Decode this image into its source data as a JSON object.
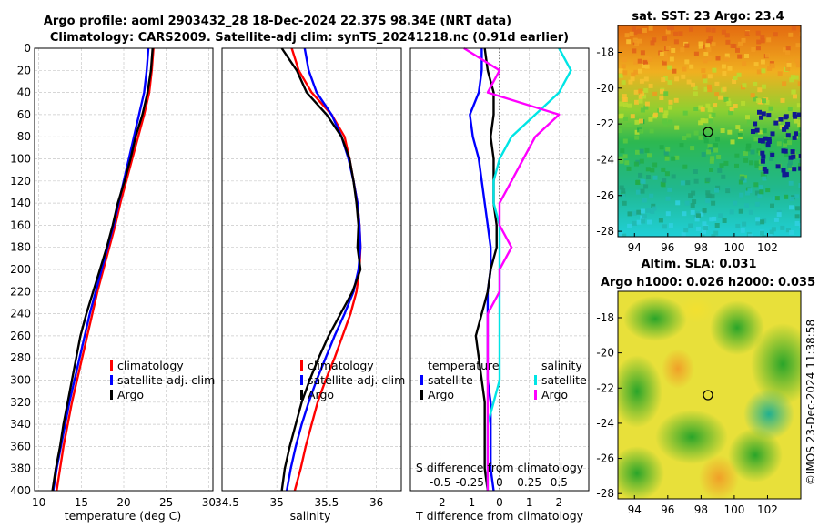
{
  "titles": {
    "main_line1": "Argo profile: aoml 2903432_28 18-Dec-2024 22.37S 98.34E (NRT data)",
    "main_line2": "Climatology: CARS2009. Satellite-adj clim: synTS_20241218.nc (0.91d earlier)",
    "sst_map": "sat. SST: 23 Argo: 23.4",
    "sla_line1": "Altim. SLA: 0.031",
    "sla_line2": "Argo h1000: 0.026 h2000: 0.035",
    "stamp": "©IMOS 23-Dec-2024 11:38:58"
  },
  "colors": {
    "climatology": "#ff0000",
    "satellite": "#0000ff",
    "argo": "#000000",
    "s_sat": "#00e5e5",
    "s_argo": "#ff00ff",
    "map_border": "#000000"
  },
  "icons": {
    "float_marker": "circle-icon"
  },
  "chart_data": [
    {
      "type": "line",
      "name": "temperature-profile",
      "xlabel": "temperature (deg C)",
      "ylabel": "depth",
      "xlim": [
        9.5,
        30.5
      ],
      "ylim": [
        0,
        400
      ],
      "y_inverted": true,
      "xticks": [
        10,
        15,
        20,
        25,
        30
      ],
      "yticks": [
        0,
        20,
        40,
        60,
        80,
        100,
        120,
        140,
        160,
        180,
        200,
        220,
        240,
        260,
        280,
        300,
        320,
        340,
        360,
        380,
        400
      ],
      "legend": [
        "climatology",
        "satellite-adj. clim",
        "Argo"
      ],
      "depth": [
        0,
        20,
        40,
        60,
        80,
        100,
        120,
        140,
        160,
        180,
        200,
        220,
        240,
        260,
        280,
        300,
        320,
        340,
        360,
        380,
        400
      ],
      "series": [
        {
          "name": "climatology",
          "values": [
            23.5,
            23.3,
            23.0,
            22.4,
            21.7,
            21.0,
            20.3,
            19.6,
            19.0,
            18.3,
            17.6,
            16.9,
            16.3,
            15.7,
            15.1,
            14.5,
            13.9,
            13.4,
            12.9,
            12.5,
            12.1
          ]
        },
        {
          "name": "satellite-adj. clim",
          "values": [
            22.9,
            22.7,
            22.4,
            21.8,
            21.2,
            20.6,
            20.0,
            19.4,
            18.8,
            18.1,
            17.4,
            16.7,
            16.0,
            15.4,
            14.8,
            14.2,
            13.6,
            13.1,
            12.6,
            12.1,
            11.7
          ]
        },
        {
          "name": "Argo",
          "values": [
            23.4,
            23.2,
            22.8,
            22.2,
            21.4,
            20.8,
            20.1,
            19.3,
            18.7,
            18.0,
            17.2,
            16.4,
            15.6,
            14.9,
            14.4,
            13.9,
            13.4,
            12.9,
            12.5,
            12.0,
            11.6
          ]
        }
      ]
    },
    {
      "type": "line",
      "name": "salinity-profile",
      "xlabel": "salinity",
      "ylabel": "depth",
      "xlim": [
        34.45,
        36.25
      ],
      "ylim": [
        0,
        400
      ],
      "y_inverted": true,
      "xticks": [
        34.5,
        35,
        35.5,
        36
      ],
      "legend": [
        "climatology",
        "satellite-adj. clim",
        "Argo"
      ],
      "depth": [
        0,
        20,
        40,
        60,
        80,
        100,
        120,
        140,
        160,
        180,
        200,
        220,
        240,
        260,
        280,
        300,
        320,
        340,
        360,
        380,
        400
      ],
      "series": [
        {
          "name": "climatology",
          "values": [
            35.15,
            35.22,
            35.35,
            35.55,
            35.68,
            35.73,
            35.77,
            35.81,
            35.83,
            35.84,
            35.83,
            35.8,
            35.74,
            35.66,
            35.58,
            35.49,
            35.41,
            35.35,
            35.29,
            35.24,
            35.18
          ]
        },
        {
          "name": "satellite-adj. clim",
          "values": [
            35.28,
            35.32,
            35.4,
            35.55,
            35.65,
            35.72,
            35.77,
            35.81,
            35.83,
            35.84,
            35.82,
            35.77,
            35.68,
            35.58,
            35.49,
            35.4,
            35.32,
            35.25,
            35.19,
            35.14,
            35.1
          ]
        },
        {
          "name": "Argo",
          "values": [
            35.05,
            35.2,
            35.3,
            35.5,
            35.65,
            35.73,
            35.77,
            35.8,
            35.82,
            35.81,
            35.84,
            35.76,
            35.64,
            35.52,
            35.42,
            35.33,
            35.25,
            35.19,
            35.13,
            35.08,
            35.05
          ]
        }
      ]
    },
    {
      "type": "line",
      "name": "difference-profile",
      "xlabel": "T difference from climatology",
      "x2label": "S difference from climatology",
      "xlim": [
        -3,
        3
      ],
      "ylim": [
        0,
        400
      ],
      "y_inverted": true,
      "xticks": [
        -2,
        -1,
        0,
        1,
        2
      ],
      "x2ticks": [
        "-0.5",
        "-0.25",
        "0",
        "0.25",
        "0.5"
      ],
      "legend_groups": [
        "temperature",
        "salinity"
      ],
      "legend": [
        "satellite",
        "Argo",
        "satellite",
        "Argo"
      ],
      "depth": [
        0,
        20,
        40,
        60,
        80,
        100,
        120,
        140,
        160,
        180,
        200,
        220,
        240,
        260,
        280,
        300,
        320,
        340,
        360,
        380,
        400
      ],
      "series": [
        {
          "name": "temperature satellite",
          "values": [
            -0.6,
            -0.6,
            -0.7,
            -1.0,
            -0.9,
            -0.7,
            -0.6,
            -0.5,
            -0.4,
            -0.3,
            -0.3,
            -0.4,
            -0.4,
            -0.4,
            -0.4,
            -0.4,
            -0.3,
            -0.3,
            -0.3,
            -0.3,
            -0.2
          ]
        },
        {
          "name": "temperature Argo",
          "values": [
            -0.5,
            -0.4,
            -0.2,
            -0.2,
            -0.3,
            -0.2,
            -0.2,
            -0.2,
            -0.1,
            -0.1,
            -0.3,
            -0.4,
            -0.6,
            -0.8,
            -0.7,
            -0.6,
            -0.5,
            -0.5,
            -0.5,
            -0.5,
            -0.4
          ]
        },
        {
          "name": "salinity satellite",
          "values": [
            0.5,
            0.6,
            0.5,
            0.3,
            0.1,
            0.0,
            -0.05,
            -0.05,
            0.0,
            0.0,
            0.0,
            0.0,
            0.0,
            0.0,
            0.0,
            0.0,
            -0.05,
            -0.1,
            -0.1,
            -0.1,
            -0.1
          ]
        },
        {
          "name": "salinity Argo",
          "values": [
            -0.3,
            0.0,
            -0.1,
            0.5,
            0.3,
            0.2,
            0.1,
            0.0,
            0.0,
            0.1,
            0.0,
            0.0,
            -0.1,
            -0.1,
            -0.1,
            -0.1,
            -0.1,
            -0.1,
            -0.1,
            -0.1,
            -0.1
          ]
        }
      ]
    },
    {
      "type": "heatmap",
      "name": "sst-map",
      "title": "sat. SST: 23 Argo: 23.4",
      "xticks": [
        94,
        96,
        98,
        100,
        102
      ],
      "yticks": [
        -18,
        -20,
        -22,
        -24,
        -26,
        -28
      ],
      "xlim": [
        93,
        104
      ],
      "ylim": [
        -28.3,
        -16.5
      ],
      "float_position": [
        98.34,
        -22.37
      ]
    },
    {
      "type": "heatmap",
      "name": "sla-map",
      "title": "Altim. SLA: 0.031",
      "xticks": [
        94,
        96,
        98,
        100,
        102
      ],
      "yticks": [
        -18,
        -20,
        -22,
        -24,
        -26,
        -28
      ],
      "xlim": [
        93,
        104
      ],
      "ylim": [
        -28.3,
        -16.5
      ],
      "float_position": [
        98.34,
        -22.37
      ]
    }
  ]
}
